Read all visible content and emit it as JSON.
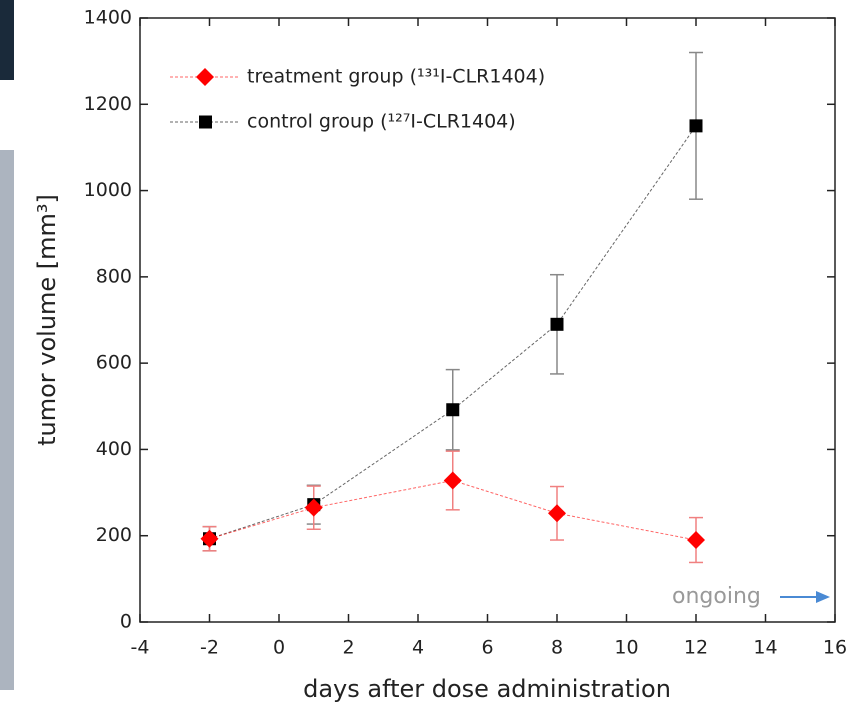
{
  "chart_data": {
    "type": "line",
    "xlabel": "days after dose administration",
    "ylabel": "tumor volume [mm³]",
    "annotation": "ongoing",
    "xlim": [
      -4,
      16
    ],
    "xticks": [
      -4,
      -2,
      0,
      2,
      4,
      6,
      8,
      10,
      12,
      14,
      16
    ],
    "ylim": [
      0,
      1400
    ],
    "yticks": [
      0,
      200,
      400,
      600,
      800,
      1000,
      1200,
      1400
    ],
    "legend": "upper left",
    "series": [
      {
        "name": "treatment group (¹³¹I-CLR1404)",
        "color": "#ff0000",
        "marker": "diamond",
        "x": [
          -2,
          1,
          5,
          8,
          12
        ],
        "values": [
          193,
          265,
          328,
          252,
          190
        ],
        "errors": [
          28,
          50,
          68,
          62,
          52
        ]
      },
      {
        "name": "control group (¹²⁷I-CLR1404)",
        "color": "#000000",
        "marker": "square",
        "x": [
          -2,
          1,
          5,
          8,
          12
        ],
        "values": [
          193,
          272,
          492,
          690,
          1150
        ],
        "errors": [
          28,
          45,
          93,
          115,
          170
        ]
      }
    ]
  }
}
